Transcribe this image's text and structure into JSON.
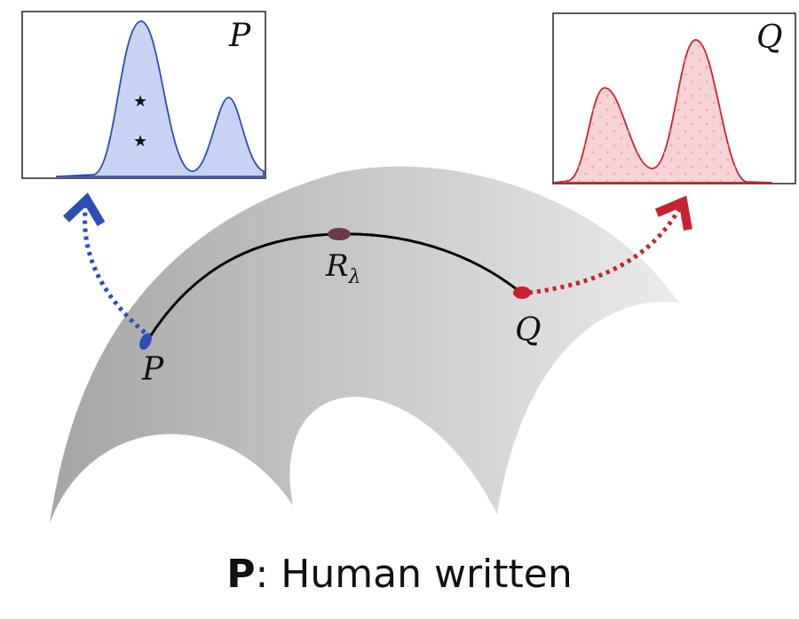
{
  "diagram": {
    "left_box_label": "P",
    "right_box_label": "Q",
    "point_p_label": "P",
    "point_q_label": "Q",
    "midpoint_label_base": "R",
    "midpoint_label_sub": "λ",
    "colors": {
      "p_stroke": "#2a4fb5",
      "p_fill": "#c9d3f5",
      "q_stroke": "#c8222e",
      "q_fill": "#f7d3d6",
      "midpoint": "#6b3a4a",
      "manifold_dark": "#a7a7a7",
      "manifold_light": "#e9e9e9",
      "curve": "#000000"
    }
  },
  "caption": {
    "bold": "P",
    "text": ": Human written"
  }
}
